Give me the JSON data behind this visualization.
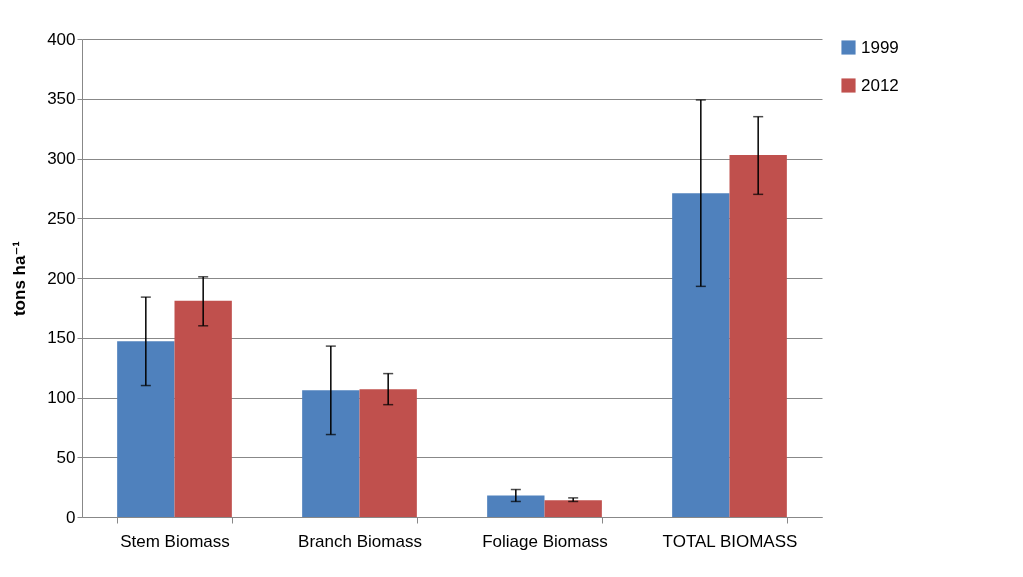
{
  "chart_data": {
    "type": "bar",
    "ylabel": "tons ha⁻¹",
    "categories": [
      "Stem Biomass",
      "Branch Biomass",
      "Foliage Biomass",
      "TOTAL BIOMASS"
    ],
    "series": [
      {
        "name": "1999",
        "color": "#4f81bd",
        "values": [
          147,
          106,
          18,
          271
        ],
        "errors": [
          [
            110,
            184
          ],
          [
            69,
            143
          ],
          [
            13,
            23
          ],
          [
            193,
            349
          ]
        ]
      },
      {
        "name": "2012",
        "color": "#c0504d",
        "values": [
          181,
          107,
          14,
          303
        ],
        "errors": [
          [
            160,
            201
          ],
          [
            94,
            120
          ],
          [
            13,
            16
          ],
          [
            270,
            335
          ]
        ]
      }
    ],
    "ylim": [
      0,
      400
    ],
    "yticks": [
      0,
      50,
      100,
      150,
      200,
      250,
      300,
      350,
      400
    ],
    "grid": "y",
    "legend": "right"
  }
}
